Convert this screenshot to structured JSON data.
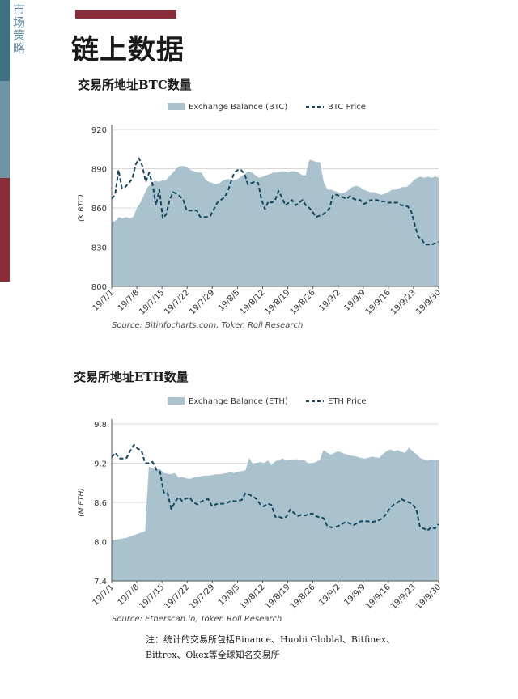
{
  "sidebar": {
    "label": "市场策略"
  },
  "page": {
    "title": "链上数据"
  },
  "colors": {
    "area": "#a9c2cd",
    "line": "#13475f",
    "accent": "#8a2d3b"
  },
  "note": {
    "line1": "注：统计的交易所包括Binance、Huobi Globlal、Bitfinex、",
    "line2": "Bittrex、Okex等全球知名交易所"
  },
  "chart_data": [
    {
      "type": "area",
      "title": "交易所地址BTC数量",
      "ylabel": "(K BTC)",
      "xlabel": "",
      "source": "Source: Bitinfocharts.com, Token Roll Research",
      "ylim": [
        800,
        920
      ],
      "yticks": [
        "920",
        "890",
        "860",
        "830",
        "800"
      ],
      "x_labels": [
        "19/7/1",
        "19/7/8",
        "19/7/15",
        "19/7/22",
        "19/7/29",
        "19/8/5",
        "19/8/12",
        "19/8/19",
        "19/8/26",
        "19/9/2",
        "19/9/9",
        "19/9/16",
        "19/9/23",
        "19/9/30"
      ],
      "legend": [
        "Exchange Balance (BTC)",
        "BTC Price"
      ],
      "legend_position": "top",
      "grid": "horizontal",
      "series": [
        {
          "name": "Exchange Balance (BTC)",
          "kind": "area",
          "values": [
            849,
            850,
            853,
            852,
            853,
            852,
            853,
            860,
            864,
            870,
            876,
            878,
            881,
            880,
            881,
            881,
            884,
            887,
            890,
            892,
            892,
            891,
            889,
            888,
            887,
            887,
            882,
            880,
            879,
            878,
            879,
            881,
            882,
            882,
            881,
            882,
            884,
            886,
            888,
            887,
            885,
            883,
            884,
            885,
            886,
            887,
            887,
            888,
            888,
            887,
            888,
            888,
            887,
            885,
            885,
            897,
            896,
            895,
            895,
            880,
            874,
            874,
            873,
            872,
            871,
            872,
            874,
            876,
            877,
            876,
            874,
            873,
            872,
            872,
            871,
            870,
            871,
            872,
            874,
            874,
            875,
            876,
            876,
            878,
            881,
            883,
            884,
            883,
            884,
            883,
            884,
            883
          ]
        },
        {
          "name": "BTC Price",
          "kind": "dashed",
          "values": [
            867,
            870,
            889,
            875,
            876,
            879,
            882,
            893,
            898,
            892,
            880,
            887,
            878,
            862,
            874,
            852,
            855,
            866,
            872,
            871,
            869,
            866,
            858,
            858,
            858,
            858,
            853,
            853,
            853,
            854,
            859,
            864,
            866,
            868,
            872,
            880,
            887,
            889,
            889,
            886,
            878,
            879,
            880,
            879,
            866,
            859,
            865,
            864,
            866,
            873,
            868,
            862,
            864,
            866,
            862,
            864,
            866,
            862,
            860,
            857,
            853,
            854,
            855,
            857,
            860,
            870,
            870,
            869,
            868,
            867,
            869,
            867,
            866,
            866,
            863,
            864,
            866,
            866,
            866,
            865,
            865,
            864,
            864,
            864,
            864,
            862,
            862,
            861,
            857,
            847,
            838,
            836,
            832,
            832,
            832,
            833,
            834
          ]
        }
      ]
    },
    {
      "type": "area",
      "title": "交易所地址ETH数量",
      "ylabel": "(M ETH)",
      "xlabel": "",
      "source": "Source: Etherscan.io, Token Roll Research",
      "ylim": [
        7.4,
        9.8
      ],
      "yticks": [
        "9.8",
        "9.2",
        "8.6",
        "8.0",
        "7.4"
      ],
      "x_labels": [
        "19/7/1",
        "19/7/8",
        "19/7/15",
        "19/7/22",
        "19/7/29",
        "19/8/5",
        "19/8/12",
        "19/8/19",
        "19/8/26",
        "19/9/2",
        "19/9/9",
        "19/9/16",
        "19/9/23",
        "19/9/30"
      ],
      "legend": [
        "Exchange Balance (ETH)",
        "ETH Price"
      ],
      "legend_position": "top",
      "grid": "horizontal",
      "series": [
        {
          "name": "Exchange Balance (ETH)",
          "kind": "area",
          "values": [
            8.02,
            8.03,
            8.04,
            8.05,
            8.06,
            8.08,
            8.1,
            8.12,
            8.14,
            8.16,
            9.15,
            9.12,
            9.1,
            9.11,
            9.05,
            9.04,
            9.03,
            9.05,
            8.98,
            8.99,
            8.97,
            8.96,
            8.98,
            8.99,
            9.0,
            9.01,
            9.01,
            9.02,
            9.03,
            9.03,
            9.04,
            9.05,
            9.06,
            9.05,
            9.07,
            9.08,
            9.09,
            9.28,
            9.18,
            9.2,
            9.22,
            9.2,
            9.24,
            9.17,
            9.23,
            9.25,
            9.27,
            9.24,
            9.25,
            9.26,
            9.26,
            9.25,
            9.24,
            9.19,
            9.2,
            9.22,
            9.25,
            9.4,
            9.36,
            9.33,
            9.36,
            9.38,
            9.36,
            9.34,
            9.32,
            9.31,
            9.3,
            9.28,
            9.27,
            9.28,
            9.3,
            9.29,
            9.28,
            9.34,
            9.38,
            9.41,
            9.38,
            9.4,
            9.37,
            9.36,
            9.44,
            9.38,
            9.34,
            9.28,
            9.26,
            9.25,
            9.26,
            9.25,
            9.26
          ]
        },
        {
          "name": "ETH Price",
          "kind": "dashed",
          "values": [
            9.29,
            9.36,
            9.27,
            9.27,
            9.28,
            9.39,
            9.48,
            9.42,
            9.4,
            9.2,
            9.2,
            9.22,
            9.1,
            9.07,
            8.75,
            8.75,
            8.5,
            8.6,
            8.68,
            8.62,
            8.66,
            8.67,
            8.6,
            8.57,
            8.61,
            8.64,
            8.65,
            8.54,
            8.57,
            8.58,
            8.58,
            8.59,
            8.62,
            8.62,
            8.62,
            8.64,
            8.74,
            8.72,
            8.69,
            8.65,
            8.57,
            8.54,
            8.58,
            8.56,
            8.38,
            8.38,
            8.36,
            8.38,
            8.49,
            8.44,
            8.39,
            8.41,
            8.4,
            8.42,
            8.43,
            8.39,
            8.37,
            8.36,
            8.24,
            8.22,
            8.22,
            8.24,
            8.27,
            8.3,
            8.28,
            8.25,
            8.28,
            8.31,
            8.31,
            8.31,
            8.3,
            8.31,
            8.33,
            8.36,
            8.43,
            8.52,
            8.57,
            8.6,
            8.65,
            8.62,
            8.6,
            8.57,
            8.49,
            8.22,
            8.2,
            8.17,
            8.22,
            8.2,
            8.27
          ]
        }
      ]
    }
  ]
}
